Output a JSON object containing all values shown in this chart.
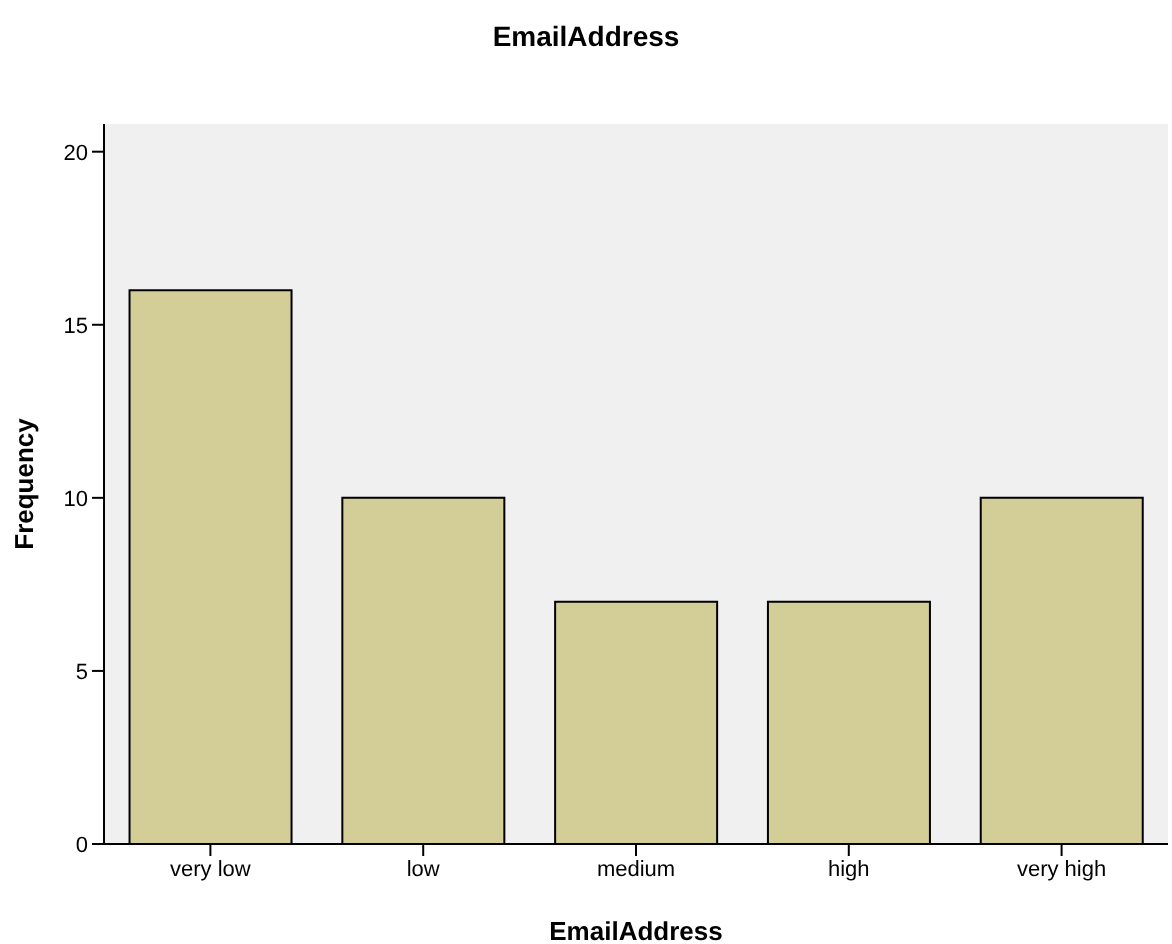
{
  "chart_data": {
    "type": "bar",
    "title": "EmailAddress",
    "xlabel": "EmailAddress",
    "ylabel": "Frequency",
    "categories": [
      "very low",
      "low",
      "medium",
      "high",
      "very high"
    ],
    "values": [
      16,
      10,
      7,
      7,
      10
    ],
    "color": "#d3ce97",
    "ylim": [
      0,
      20.8
    ],
    "yticks": [
      0,
      5,
      10,
      15,
      20
    ],
    "grid": false,
    "legend": false
  }
}
